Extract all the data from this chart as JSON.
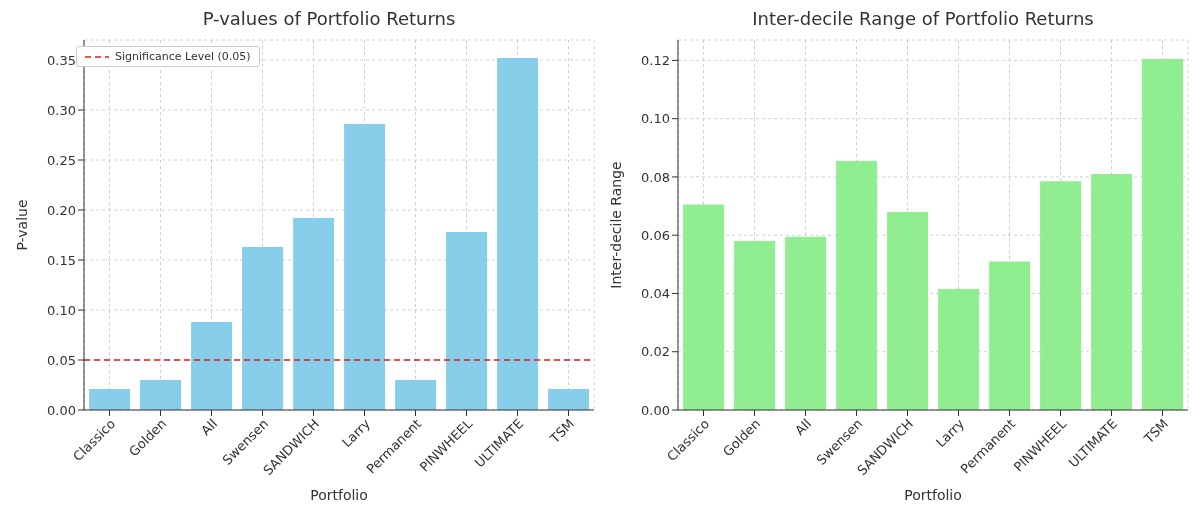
{
  "chart_data": [
    {
      "type": "bar",
      "title": "P-values of Portfolio Returns",
      "xlabel": "Portfolio",
      "ylabel": "P-value",
      "categories": [
        "Classico",
        "Golden",
        "All",
        "Swensen",
        "SANDWICH",
        "Larry",
        "Permanent",
        "PINWHEEL",
        "ULTIMATE",
        "TSM"
      ],
      "values": [
        0.021,
        0.03,
        0.088,
        0.163,
        0.192,
        0.286,
        0.03,
        0.178,
        0.352,
        0.021
      ],
      "color": "#87ceeb",
      "ylim": [
        0,
        0.37
      ],
      "yticks": [
        {
          "value": 0,
          "label": "0.00"
        },
        {
          "value": 0.05,
          "label": "0.05"
        },
        {
          "value": 0.1,
          "label": "0.10"
        },
        {
          "value": 0.15,
          "label": "0.15"
        },
        {
          "value": 0.2,
          "label": "0.20"
        },
        {
          "value": 0.25,
          "label": "0.25"
        },
        {
          "value": 0.3,
          "label": "0.30"
        },
        {
          "value": 0.35,
          "label": "0.35"
        }
      ],
      "grid": true,
      "legend": "top left",
      "ref_lines": [
        {
          "axis": "y",
          "value": 0.05,
          "label": "Significance Level (0.05)",
          "color": "#e41a1c",
          "line_style": "dashed"
        }
      ]
    },
    {
      "type": "bar",
      "title": "Inter-decile Range of Portfolio Returns",
      "xlabel": "Portfolio",
      "ylabel": "Inter-decile Range",
      "categories": [
        "Classico",
        "Golden",
        "All",
        "Swensen",
        "SANDWICH",
        "Larry",
        "Permanent",
        "PINWHEEL",
        "ULTIMATE",
        "TSM"
      ],
      "values": [
        0.0705,
        0.058,
        0.0595,
        0.0855,
        0.068,
        0.0415,
        0.051,
        0.0785,
        0.081,
        0.1205
      ],
      "color": "#90ee90",
      "ylim": [
        0,
        0.127
      ],
      "yticks": [
        {
          "value": 0,
          "label": "0.00"
        },
        {
          "value": 0.02,
          "label": "0.02"
        },
        {
          "value": 0.04,
          "label": "0.04"
        },
        {
          "value": 0.06,
          "label": "0.06"
        },
        {
          "value": 0.08,
          "label": "0.08"
        },
        {
          "value": 0.1,
          "label": "0.10"
        },
        {
          "value": 0.12,
          "label": "0.12"
        }
      ],
      "grid": true
    }
  ]
}
